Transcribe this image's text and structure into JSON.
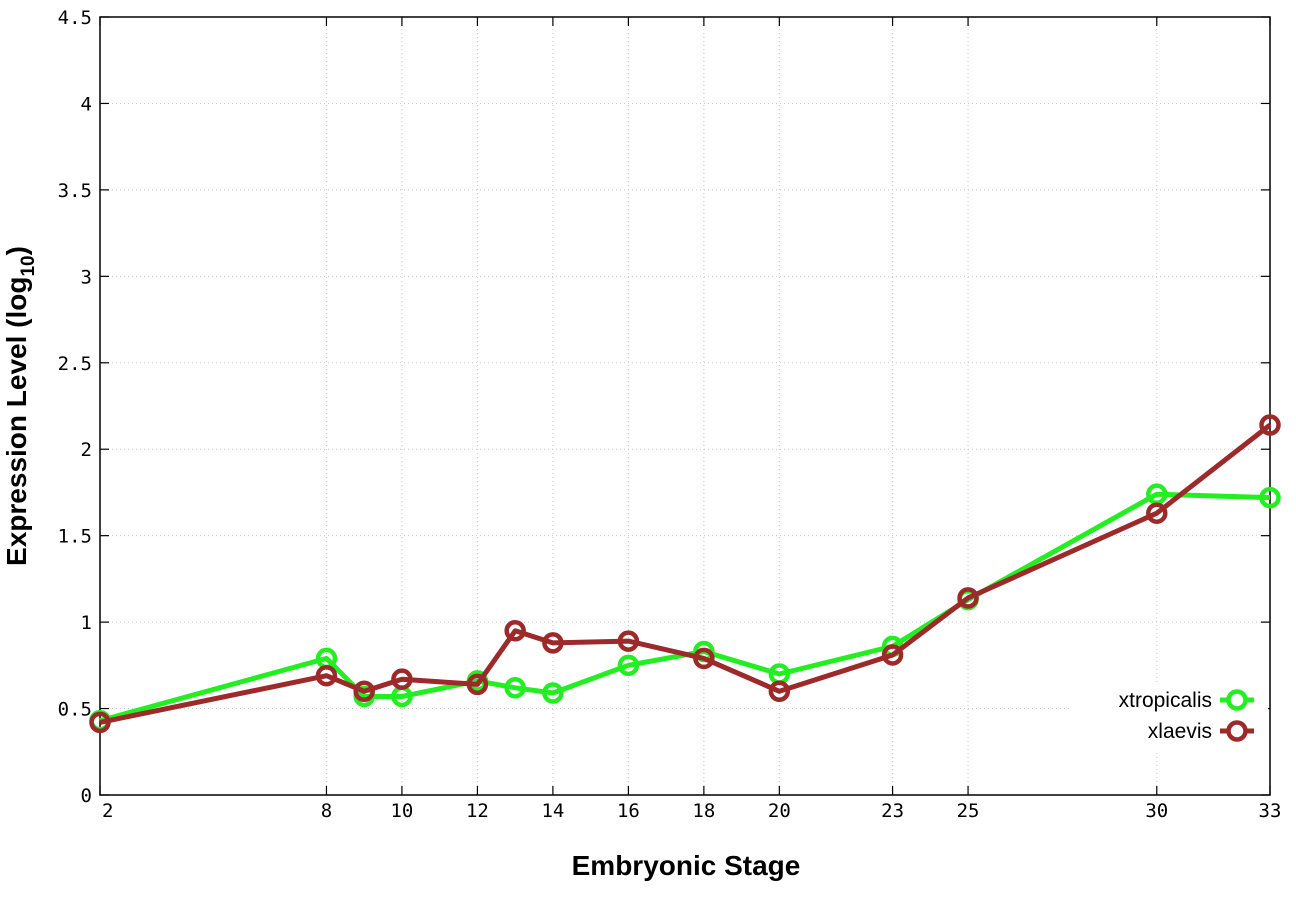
{
  "chart_data": {
    "type": "line",
    "xlabel": "Embryonic Stage",
    "ylabel_main": "Expression Level (log",
    "ylabel_sub": "10",
    "ylabel_close": ")",
    "x_ticks": [
      2,
      8,
      10,
      12,
      14,
      16,
      18,
      20,
      23,
      25,
      30,
      33
    ],
    "y_ticks": [
      "0",
      "0.5",
      "1",
      "1.5",
      "2",
      "2.5",
      "3",
      "3.5",
      "4",
      "4.5"
    ],
    "xlim": [
      2,
      33
    ],
    "ylim": [
      0,
      4.5
    ],
    "grid": true,
    "legend_position": "bottom-right",
    "series": [
      {
        "name": "xtropicalis",
        "color": "#22ee22",
        "x": [
          2,
          8,
          9,
          10,
          12,
          13,
          14,
          16,
          18,
          20,
          23,
          25,
          30,
          33
        ],
        "y": [
          0.43,
          0.79,
          0.57,
          0.57,
          0.66,
          0.62,
          0.59,
          0.75,
          0.83,
          0.7,
          0.86,
          1.13,
          1.74,
          1.72
        ]
      },
      {
        "name": "xlaevis",
        "color": "#9c2a2a",
        "x": [
          2,
          8,
          9,
          10,
          12,
          13,
          14,
          16,
          18,
          20,
          23,
          25,
          30,
          33
        ],
        "y": [
          0.42,
          0.69,
          0.6,
          0.67,
          0.64,
          0.95,
          0.88,
          0.89,
          0.79,
          0.6,
          0.81,
          1.14,
          1.63,
          2.14
        ]
      }
    ]
  }
}
